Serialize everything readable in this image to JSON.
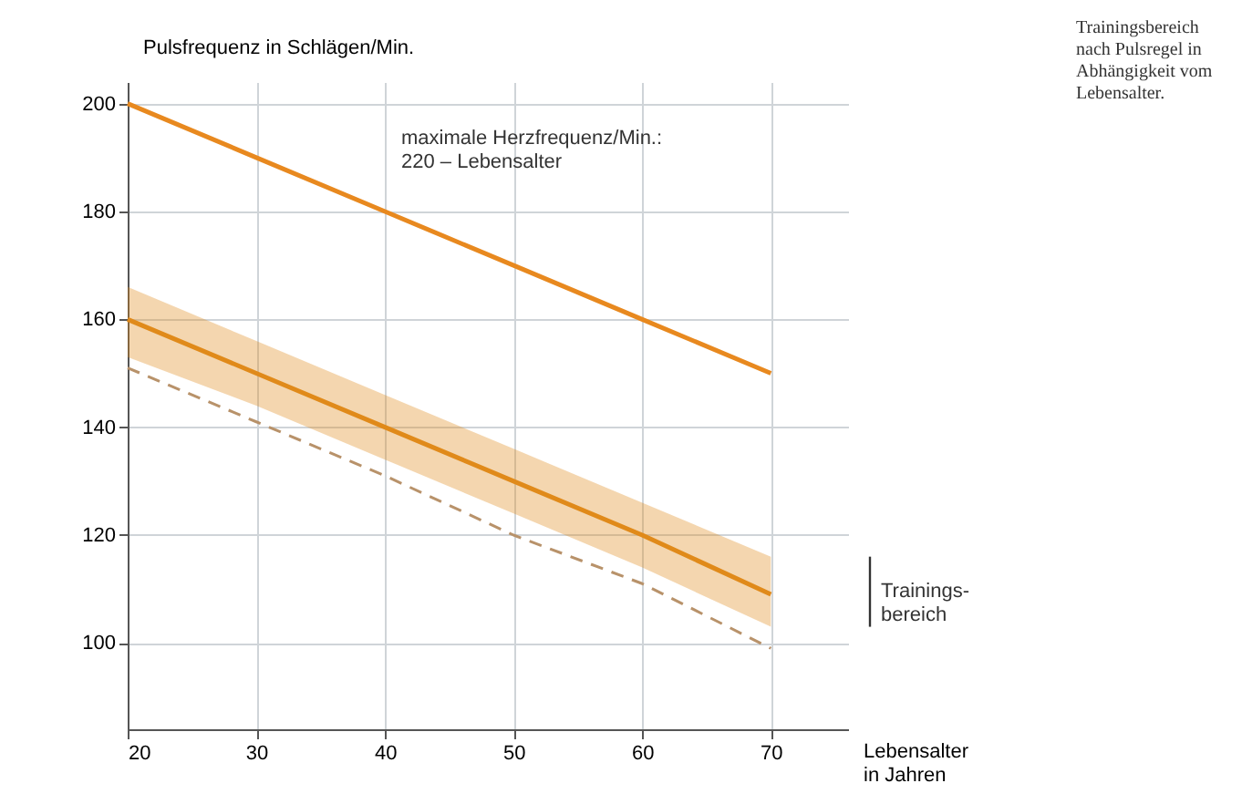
{
  "chart_data": {
    "type": "line",
    "xlabel": "Lebensalter\nin Jahren",
    "ylabel": "Pulsfrequenz in Schlägen/Min.",
    "x": [
      20,
      30,
      40,
      50,
      60,
      70
    ],
    "series": [
      {
        "color": "#e8891f",
        "values": [
          200,
          190,
          180,
          170,
          160,
          150
        ]
      },
      {
        "color": "#e08a1a",
        "values": [
          160,
          150,
          140,
          130,
          120,
          109
        ],
        "lower": [
          153,
          144,
          134,
          124,
          114,
          103
        ],
        "upper": [
          166,
          156,
          146,
          136,
          126,
          116
        ]
      },
      {
        "color": "#b8926a",
        "values": [
          151,
          141,
          131,
          120,
          111,
          99
        ],
        "line_style": "dashed"
      }
    ],
    "xlim": [
      20,
      76
    ],
    "xticks": [
      20,
      30,
      40,
      50,
      60,
      70
    ],
    "ylim": [
      84,
      204
    ],
    "yticks": [
      100,
      120,
      140,
      160,
      180,
      200
    ],
    "grid": true,
    "marker": "none",
    "annotations": [
      "maximale Herzfrequenz/Min.:\n220 – Lebensalter",
      "Trainings-\nbereich",
      "Trainingsbereich\nnach Pulsregel in\nAbhängigkeit vom\nLebensalter."
    ]
  }
}
